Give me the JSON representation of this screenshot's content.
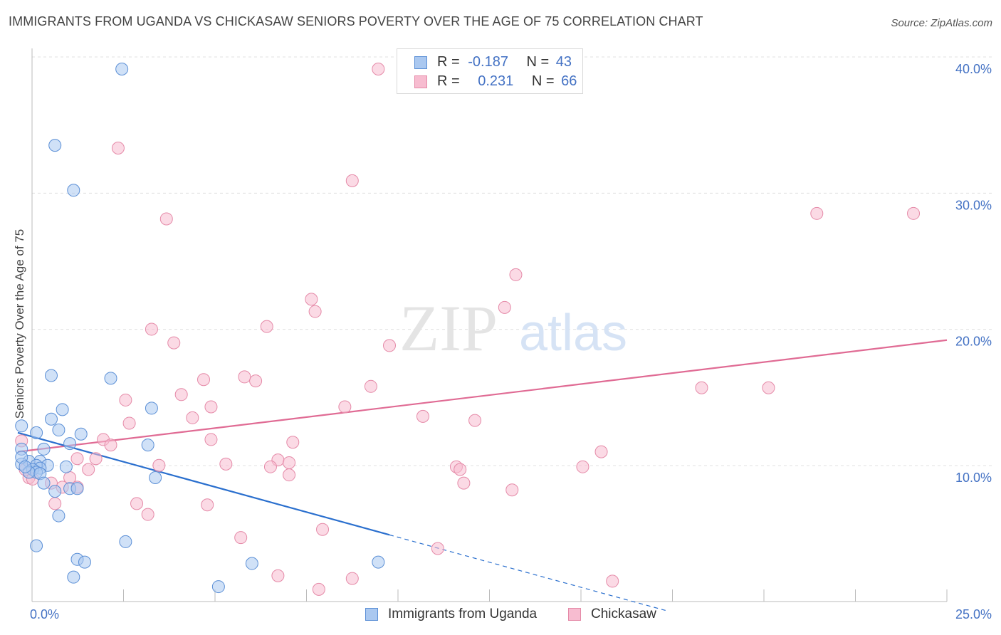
{
  "title": "IMMIGRANTS FROM UGANDA VS CHICKASAW SENIORS POVERTY OVER THE AGE OF 75 CORRELATION CHART",
  "source": "Source: ZipAtlas.com",
  "watermark": {
    "zip": "ZIP",
    "atlas": "atlas"
  },
  "legend": {
    "series1": {
      "r_label": "R =",
      "r_value": "-0.187",
      "n_label": "N =",
      "n_value": "43"
    },
    "series2": {
      "r_label": "R =",
      "r_value": "0.231",
      "n_label": "N =",
      "n_value": "66"
    }
  },
  "bottom_legend": {
    "series1": "Immigrants from Uganda",
    "series2": "Chickasaw"
  },
  "colors": {
    "series1_fill": "#aac8f0",
    "series1_stroke": "#5b8fd6",
    "series1_line": "#2a6fce",
    "series2_fill": "#f7bcd0",
    "series2_stroke": "#e58aa8",
    "series2_line": "#e06b94",
    "tick_text": "#4472c4",
    "grid": "#e0e0e0"
  },
  "chart_data": {
    "type": "scatter",
    "title": "IMMIGRANTS FROM UGANDA VS CHICKASAW SENIORS POVERTY OVER THE AGE OF 75 CORRELATION CHART",
    "xlabel": "",
    "ylabel": "Seniors Poverty Over the Age of 75",
    "xlim": [
      0,
      25
    ],
    "ylim": [
      0,
      40
    ],
    "x_tick_labels": [
      "0.0%",
      "25.0%"
    ],
    "y_ticks": [
      10,
      20,
      30,
      40
    ],
    "y_tick_labels": [
      "10.0%",
      "20.0%",
      "30.0%",
      "40.0%"
    ],
    "grid": true,
    "legend_position": "top-center",
    "series": [
      {
        "name": "Immigrants from Uganda",
        "r": -0.187,
        "n": 43,
        "trend": {
          "x": [
            0,
            10
          ],
          "y": [
            13.3,
            5.8
          ],
          "dashed_to": [
            17.5,
            0.2
          ]
        },
        "points": [
          [
            2.8,
            40.0
          ],
          [
            1.0,
            34.4
          ],
          [
            1.5,
            31.1
          ],
          [
            0.9,
            17.5
          ],
          [
            2.5,
            17.3
          ],
          [
            1.2,
            15.0
          ],
          [
            3.6,
            15.1
          ],
          [
            0.9,
            14.3
          ],
          [
            1.1,
            13.5
          ],
          [
            0.5,
            13.3
          ],
          [
            1.7,
            13.2
          ],
          [
            1.4,
            12.5
          ],
          [
            3.5,
            12.4
          ],
          [
            0.1,
            12.1
          ],
          [
            0.7,
            12.1
          ],
          [
            0.6,
            11.2
          ],
          [
            0.3,
            11.2
          ],
          [
            0.1,
            11.0
          ],
          [
            0.8,
            10.9
          ],
          [
            0.5,
            10.9
          ],
          [
            0.6,
            10.7
          ],
          [
            1.3,
            10.8
          ],
          [
            0.4,
            10.6
          ],
          [
            0.5,
            10.4
          ],
          [
            0.3,
            10.4
          ],
          [
            0.6,
            10.3
          ],
          [
            3.7,
            10.0
          ],
          [
            0.7,
            9.6
          ],
          [
            1.4,
            9.2
          ],
          [
            1.6,
            9.2
          ],
          [
            1.0,
            9.0
          ],
          [
            1.1,
            7.2
          ],
          [
            2.9,
            5.3
          ],
          [
            0.5,
            5.0
          ],
          [
            1.6,
            4.0
          ],
          [
            1.8,
            3.8
          ],
          [
            6.3,
            3.7
          ],
          [
            9.7,
            3.8
          ],
          [
            1.5,
            2.7
          ],
          [
            5.4,
            2.0
          ],
          [
            0.1,
            13.8
          ],
          [
            0.1,
            11.5
          ],
          [
            0.2,
            10.8
          ]
        ]
      },
      {
        "name": "Chickasaw",
        "r": 0.231,
        "n": 66,
        "trend": {
          "x": [
            0,
            25
          ],
          "y": [
            11.9,
            20.1
          ]
        },
        "points": [
          [
            9.7,
            40.0
          ],
          [
            2.7,
            34.2
          ],
          [
            9.0,
            31.8
          ],
          [
            4.0,
            29.0
          ],
          [
            21.5,
            29.4
          ],
          [
            24.1,
            29.4
          ],
          [
            13.4,
            24.9
          ],
          [
            13.1,
            22.5
          ],
          [
            7.9,
            23.1
          ],
          [
            8.0,
            22.2
          ],
          [
            3.6,
            20.9
          ],
          [
            6.7,
            21.1
          ],
          [
            4.2,
            19.9
          ],
          [
            10.0,
            19.7
          ],
          [
            5.0,
            17.2
          ],
          [
            6.1,
            17.4
          ],
          [
            6.4,
            17.1
          ],
          [
            9.5,
            16.7
          ],
          [
            18.4,
            16.6
          ],
          [
            20.2,
            16.6
          ],
          [
            4.4,
            16.1
          ],
          [
            2.9,
            15.7
          ],
          [
            5.2,
            15.2
          ],
          [
            8.8,
            15.2
          ],
          [
            10.9,
            14.5
          ],
          [
            12.3,
            14.2
          ],
          [
            4.7,
            14.4
          ],
          [
            3.0,
            14.0
          ],
          [
            2.3,
            12.8
          ],
          [
            5.2,
            12.8
          ],
          [
            7.4,
            12.6
          ],
          [
            2.5,
            12.4
          ],
          [
            15.7,
            11.9
          ],
          [
            1.6,
            11.4
          ],
          [
            2.1,
            11.4
          ],
          [
            7.0,
            11.3
          ],
          [
            7.3,
            11.1
          ],
          [
            5.6,
            11.0
          ],
          [
            3.8,
            10.9
          ],
          [
            6.8,
            10.8
          ],
          [
            11.8,
            10.8
          ],
          [
            11.9,
            10.6
          ],
          [
            15.2,
            10.8
          ],
          [
            1.9,
            10.6
          ],
          [
            7.3,
            10.2
          ],
          [
            1.4,
            10.0
          ],
          [
            0.3,
            10.0
          ],
          [
            12.0,
            9.6
          ],
          [
            1.6,
            9.3
          ],
          [
            1.2,
            9.3
          ],
          [
            0.9,
            9.6
          ],
          [
            13.3,
            9.1
          ],
          [
            1.0,
            8.1
          ],
          [
            3.2,
            8.1
          ],
          [
            5.1,
            8.0
          ],
          [
            3.5,
            7.3
          ],
          [
            8.2,
            6.2
          ],
          [
            6.0,
            5.6
          ],
          [
            11.3,
            4.8
          ],
          [
            7.0,
            2.8
          ],
          [
            9.0,
            2.6
          ],
          [
            16.0,
            2.4
          ],
          [
            8.1,
            1.8
          ],
          [
            0.1,
            12.7
          ],
          [
            0.4,
            9.9
          ],
          [
            0.2,
            10.6
          ]
        ]
      }
    ]
  }
}
